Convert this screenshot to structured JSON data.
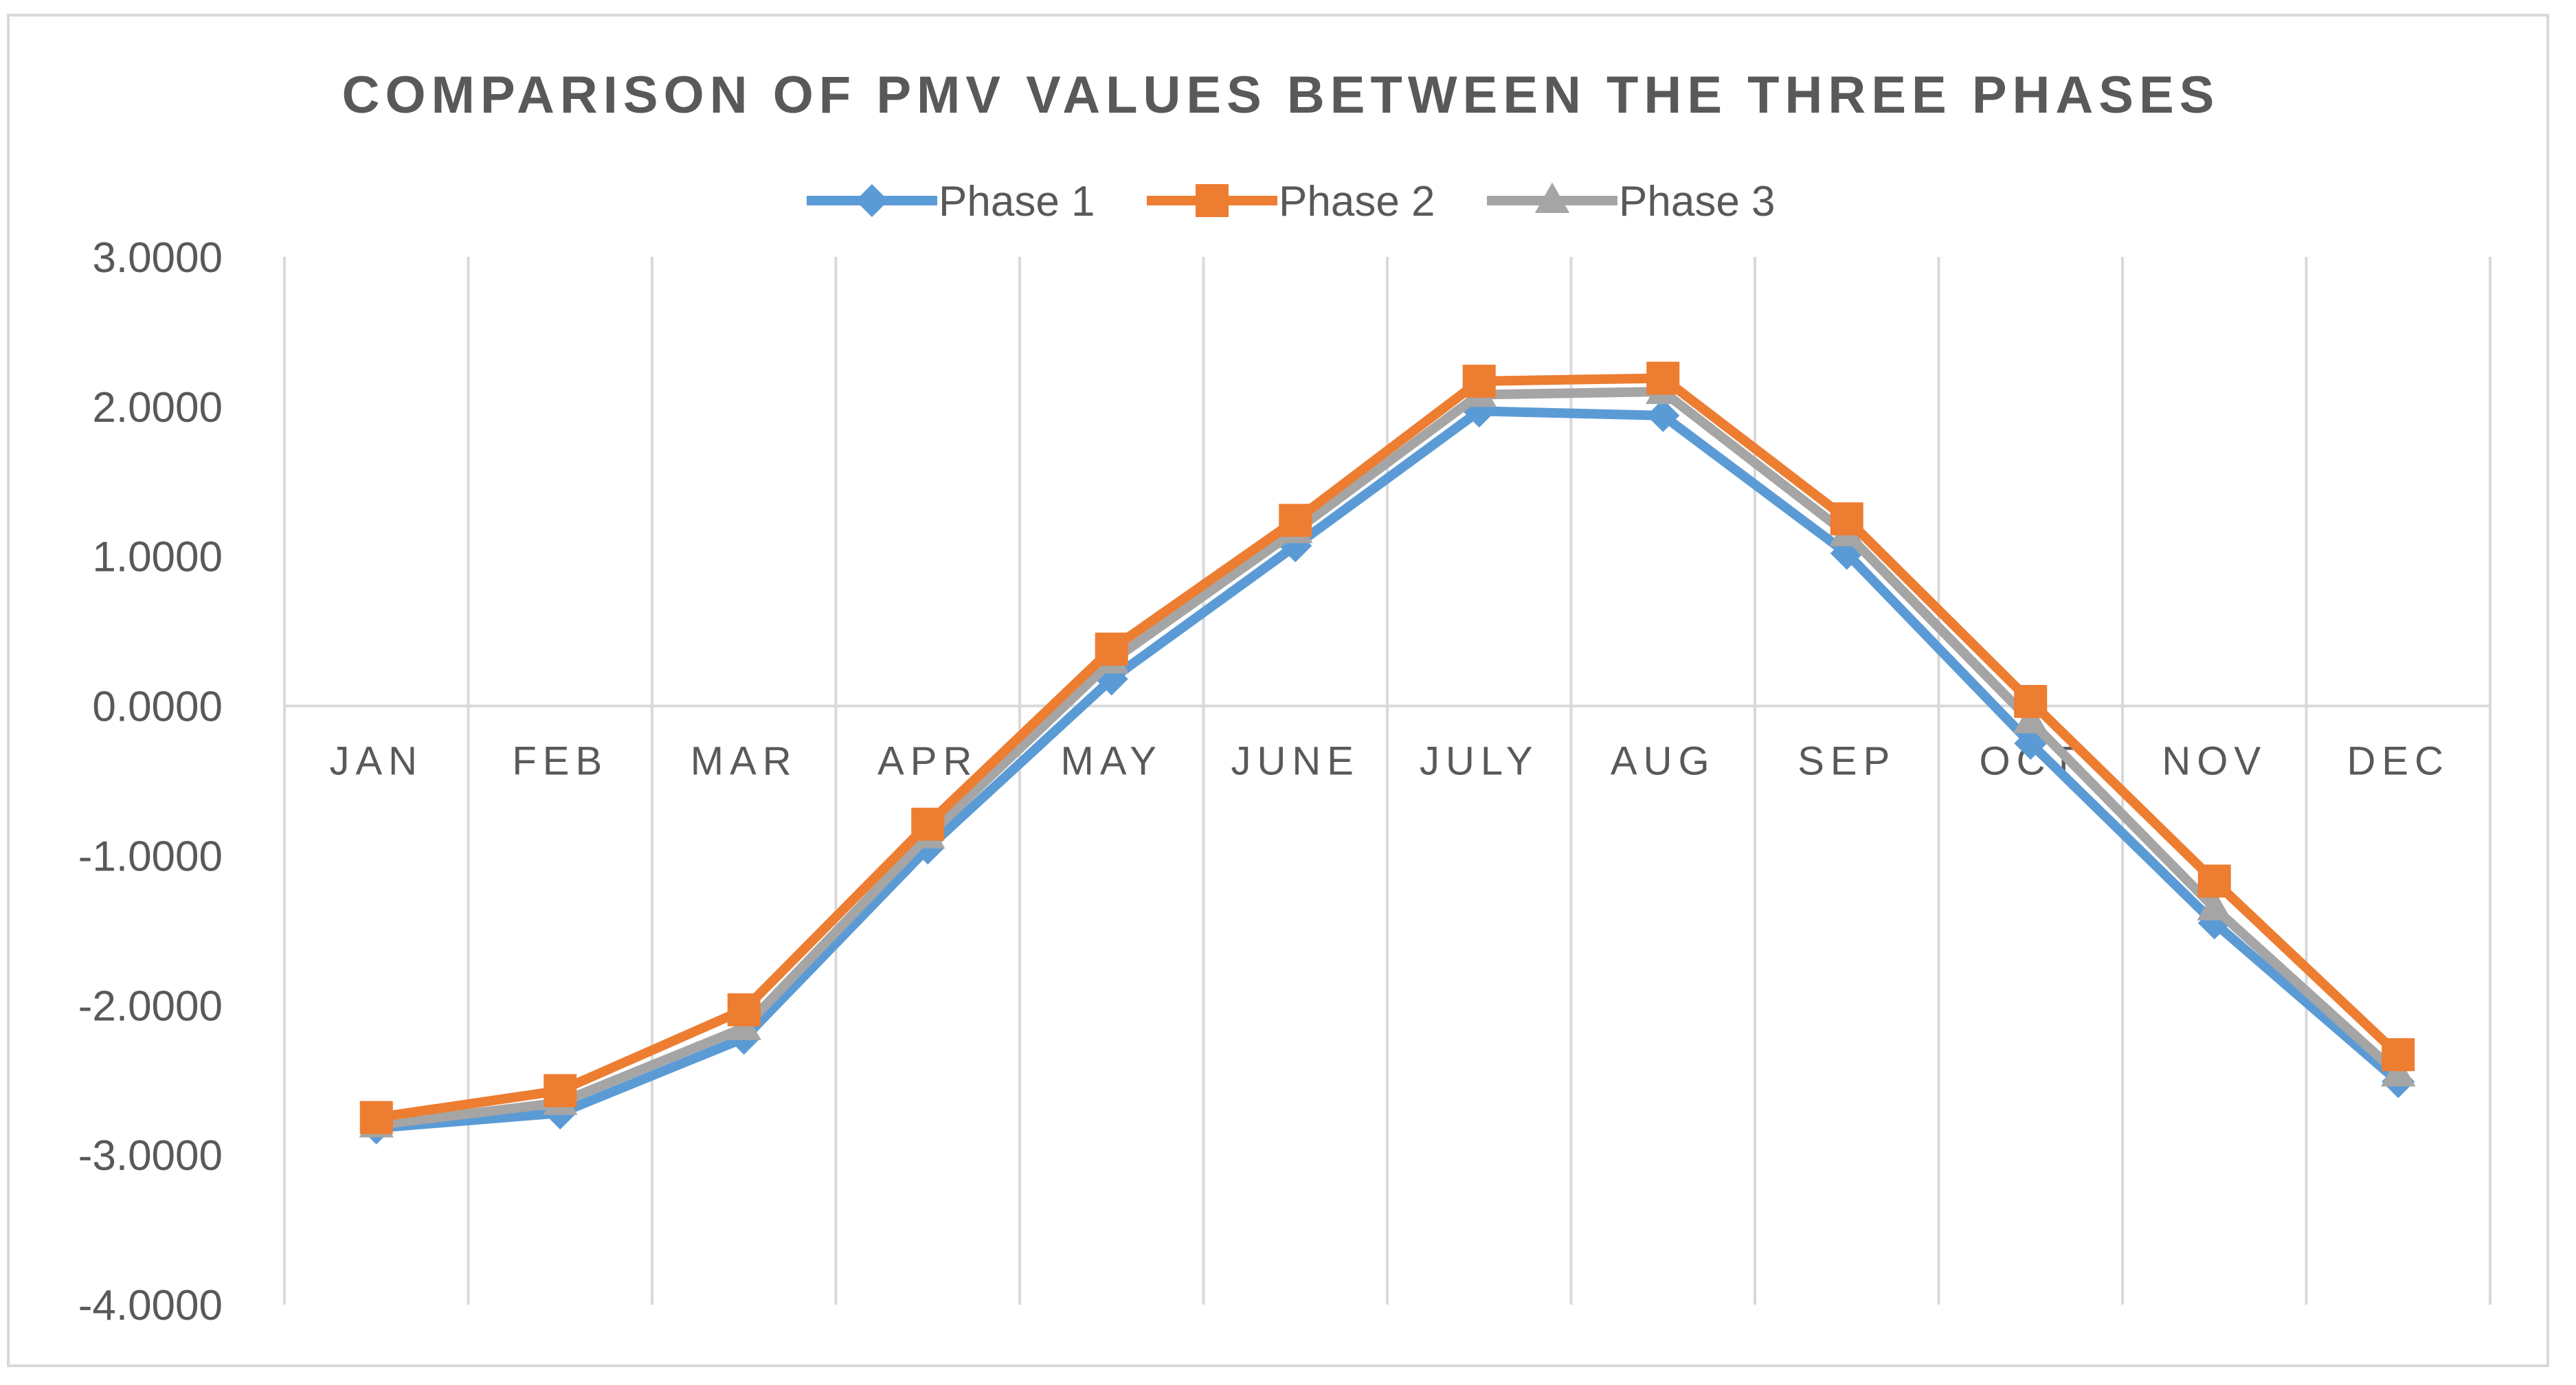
{
  "chart_data": {
    "type": "line",
    "title": "COMPARISON OF PMV VALUES BETWEEN THE THREE PHASES",
    "xlabel": "",
    "ylabel": "",
    "ylim": [
      -4,
      3
    ],
    "yticks": [
      "3.0000",
      "2.0000",
      "1.0000",
      "0.0000",
      "-1.0000",
      "-2.0000",
      "-3.0000",
      "-4.0000"
    ],
    "ytick_values": [
      3,
      2,
      1,
      0,
      -1,
      -2,
      -3,
      -4
    ],
    "grid": "vertical",
    "legend_position": "top",
    "categories": [
      "JAN",
      "FEB",
      "MAR",
      "APR",
      "MAY",
      "JUNE",
      "JULY",
      "AUG",
      "SEP",
      "OCT",
      "NOV",
      "DEC"
    ],
    "series": [
      {
        "name": "Phase 1",
        "color": "#5b9bd5",
        "marker": "diamond",
        "values": [
          -2.82,
          -2.72,
          -2.22,
          -0.95,
          0.18,
          1.07,
          1.97,
          1.94,
          1.02,
          -0.25,
          -1.45,
          -2.51
        ]
      },
      {
        "name": "Phase 2",
        "color": "#ed7d31",
        "marker": "square",
        "values": [
          -2.75,
          -2.57,
          -2.03,
          -0.79,
          0.38,
          1.24,
          2.17,
          2.19,
          1.25,
          0.03,
          -1.17,
          -2.33
        ]
      },
      {
        "name": "Phase 3",
        "color": "#a5a5a5",
        "marker": "triangle",
        "values": [
          -2.8,
          -2.65,
          -2.15,
          -0.87,
          0.3,
          1.17,
          2.08,
          2.1,
          1.15,
          -0.1,
          -1.35,
          -2.46
        ]
      }
    ]
  }
}
